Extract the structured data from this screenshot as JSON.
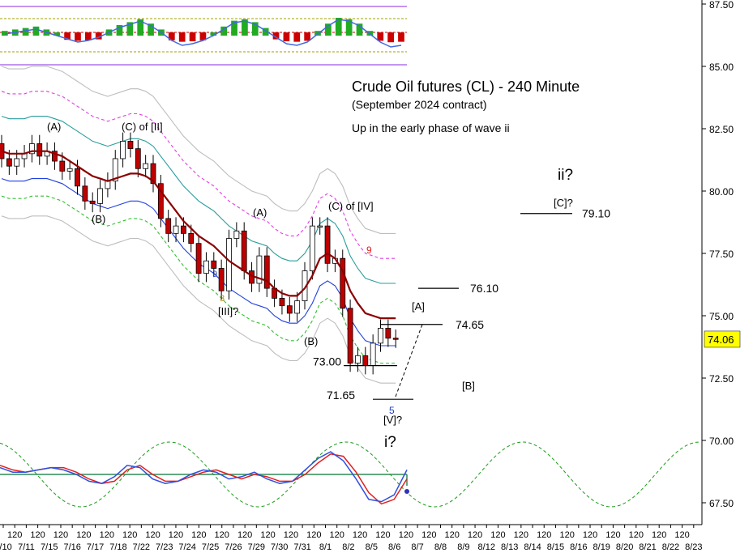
{
  "chart_data": {
    "type": "candlestick",
    "title": "Crude Oil futures (CL) - 240 Minute",
    "subtitle": "(September 2024 contract)",
    "comment": "Up in the early phase of wave ii",
    "y_axis": {
      "side": "right",
      "ticks": [
        "87.50",
        "85.00",
        "82.50",
        "80.00",
        "77.50",
        "75.00",
        "72.50",
        "70.00",
        "67.50"
      ],
      "ylim": [
        66.7,
        87.6
      ],
      "last_price": "74.06",
      "last_price_color": "#ffff00"
    },
    "x_axis": {
      "ticks": [
        "7/10",
        "120",
        "7/11",
        "120",
        "7/15",
        "120",
        "7/16",
        "120",
        "7/17",
        "120",
        "7/18",
        "120",
        "7/22",
        "120",
        "7/23",
        "120",
        "7/24",
        "120",
        "7/25",
        "120",
        "7/26",
        "120",
        "7/29",
        "120",
        "7/30",
        "120",
        "7/31",
        "120",
        "8/1",
        "120",
        "8/2",
        "120",
        "8/5",
        "120",
        "8/6",
        "120",
        "8/7",
        "120",
        "8/8",
        "120",
        "8/9",
        "120",
        "8/12",
        "120",
        "8/13",
        "120",
        "8/14",
        "120",
        "8/15",
        "120",
        "8/16",
        "120",
        "8/19",
        "120",
        "8/20",
        "120",
        "8/21",
        "120",
        "8/22",
        "120",
        "8/23"
      ]
    },
    "price_bars": {
      "open": [
        81.9,
        81.3,
        81.0,
        81.3,
        81.5,
        81.9,
        81.4,
        81.6,
        81.2,
        80.8,
        80.9,
        80.2,
        79.6,
        79.5,
        80.1,
        80.4,
        81.3,
        82.0,
        81.7,
        80.9,
        81.1,
        80.3,
        78.9,
        78.3,
        78.6,
        78.3,
        77.9,
        76.7,
        77.2,
        76.9,
        76.0,
        78.1,
        78.4,
        76.8,
        76.3,
        77.4,
        76.1,
        75.7,
        75.4,
        75.1,
        75.6,
        76.8,
        78.6,
        78.6,
        77.1,
        77.3,
        75.3,
        73.1,
        73.4,
        73.0,
        73.9,
        74.5,
        74.1
      ],
      "close": [
        81.3,
        81.0,
        81.3,
        81.5,
        81.9,
        81.4,
        81.6,
        81.2,
        80.8,
        80.9,
        80.2,
        79.6,
        79.5,
        80.1,
        80.4,
        81.3,
        82.0,
        81.7,
        80.9,
        81.1,
        80.3,
        78.9,
        78.3,
        78.6,
        78.3,
        77.9,
        76.7,
        77.2,
        76.9,
        76.0,
        78.1,
        78.4,
        76.8,
        76.3,
        77.4,
        76.1,
        75.7,
        75.4,
        75.1,
        75.6,
        76.8,
        78.6,
        78.6,
        77.1,
        77.3,
        75.3,
        73.1,
        73.4,
        73.0,
        73.9,
        74.5,
        74.1,
        74.06
      ],
      "bull_color": "#ffffff",
      "bear_color": "#c00000"
    },
    "moving_average": {
      "color": "#8b0000",
      "values": [
        81.6,
        81.5,
        81.5,
        81.5,
        81.6,
        81.6,
        81.6,
        81.5,
        81.4,
        81.2,
        81.0,
        80.8,
        80.6,
        80.5,
        80.4,
        80.5,
        80.6,
        80.7,
        80.7,
        80.6,
        80.4,
        80.0,
        79.6,
        79.2,
        78.8,
        78.5,
        78.2,
        78.0,
        77.8,
        77.5,
        77.2,
        77.0,
        76.8,
        76.6,
        76.5,
        76.4,
        76.1,
        75.9,
        75.8,
        75.8,
        76.1,
        76.6,
        77.3,
        77.5,
        77.3,
        76.8,
        76.0,
        75.5,
        75.1,
        75.0,
        74.9,
        74.9,
        74.9
      ]
    },
    "levels": [
      {
        "label": "79.10",
        "value": 79.1
      },
      {
        "label": "76.10",
        "value": 76.1
      },
      {
        "label": "74.65",
        "value": 74.65
      },
      {
        "label": "73.00",
        "value": 73.0
      },
      {
        "label": "71.65",
        "value": 71.65
      }
    ],
    "wave_labels": [
      "(A)",
      "(C) of [II]",
      "(B)",
      "(A)",
      "[III]?",
      "(B)",
      "(C) of [IV]",
      "[V]?",
      "i?",
      "ii?",
      "[C]?",
      "[A]",
      "[B]"
    ],
    "counts": [
      "9",
      "3",
      "9",
      "5"
    ],
    "oscillator_upper": {
      "bars": [
        0.1,
        0.2,
        0.3,
        0.4,
        0.2,
        0.0,
        -0.2,
        -0.4,
        -0.3,
        -0.1,
        0.2,
        0.5,
        0.7,
        0.9,
        0.6,
        0.2,
        -0.3,
        -0.6,
        -0.5,
        -0.3,
        0.0,
        0.4,
        0.8,
        0.9,
        0.7,
        0.3,
        -0.1,
        -0.5,
        -0.6,
        -0.4,
        0.1,
        0.6,
        1.0,
        0.9,
        0.6,
        0.1,
        -0.4,
        -0.7,
        -0.6
      ],
      "positive_color": "#22aa22",
      "negative_color": "#cc0000"
    },
    "cycle_oscillator": {
      "blue": [
        0.3,
        0.1,
        0.1,
        0.2,
        0.3,
        0.2,
        0.0,
        -0.3,
        -0.4,
        -0.1,
        0.4,
        0.3,
        -0.2,
        -0.4,
        -0.3,
        0.0,
        0.2,
        0.1,
        -0.2,
        -0.1,
        0.1,
        -0.2,
        -0.4,
        -0.3,
        0.2,
        0.7,
        1.0,
        0.6,
        -0.2,
        -1.1,
        -1.2,
        -0.9,
        0.2
      ],
      "red": [
        0.4,
        0.2,
        0.1,
        0.2,
        0.3,
        0.3,
        0.1,
        -0.2,
        -0.4,
        -0.3,
        0.2,
        0.4,
        0.0,
        -0.3,
        -0.3,
        -0.1,
        0.1,
        0.2,
        0.0,
        -0.2,
        0.0,
        -0.1,
        -0.3,
        -0.3,
        0.0,
        0.5,
        0.9,
        0.8,
        0.1,
        -0.8,
        -1.3,
        -1.1,
        -0.2
      ],
      "projection_color": "#1a9a1a"
    }
  }
}
